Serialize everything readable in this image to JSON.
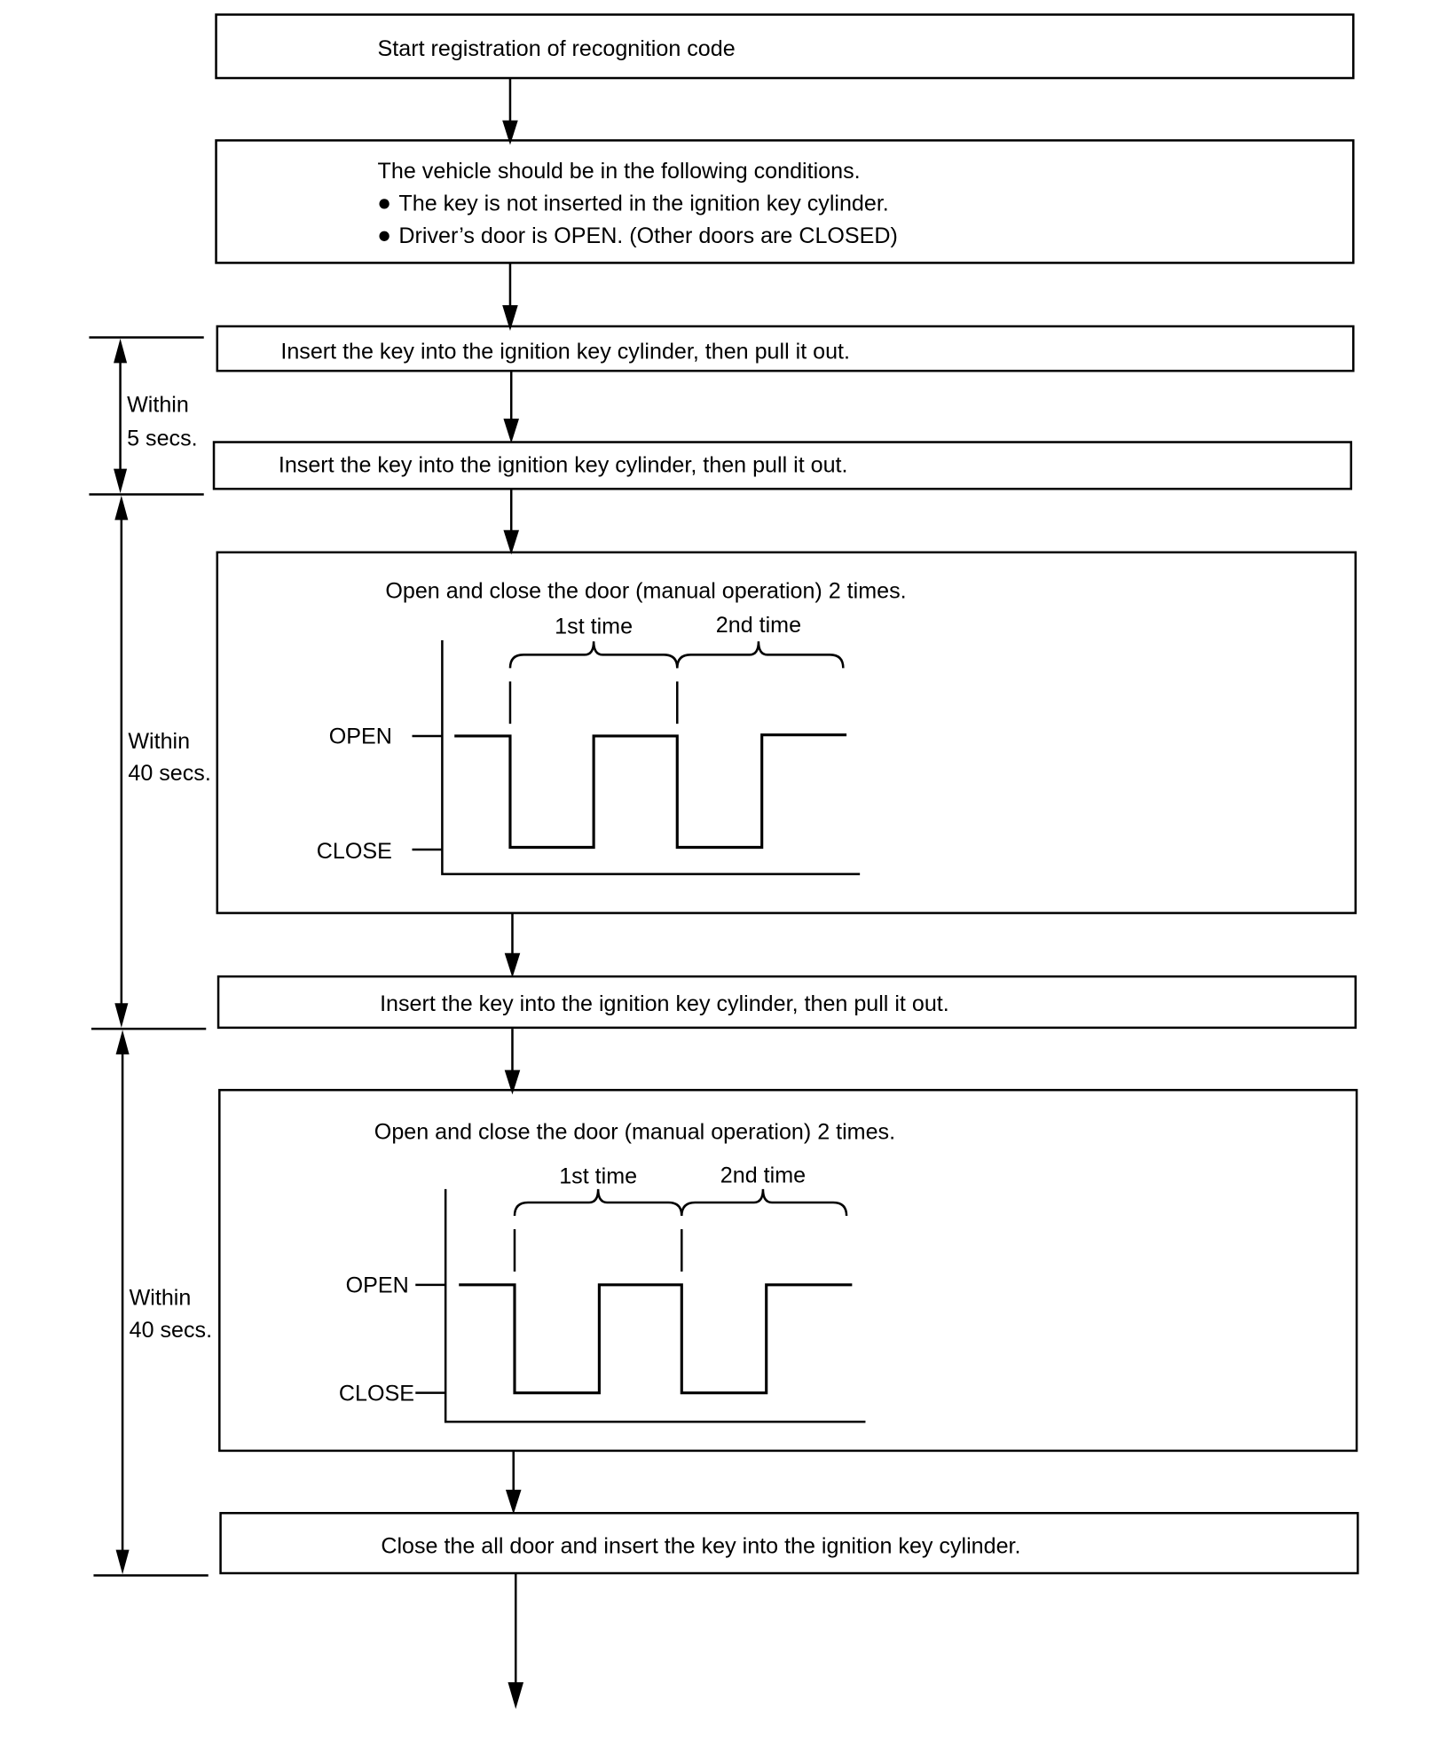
{
  "steps": [
    {
      "text": "Start registration of recognition code"
    },
    {
      "lines": [
        "The vehicle should be in the following conditions.",
        "The key is not inserted in the ignition key cylinder.",
        "Driver’s door is OPEN. (Other doors are CLOSED)"
      ]
    },
    {
      "text": "Insert the key into the ignition key cylinder, then pull it out."
    },
    {
      "text": "Insert the key into the ignition key cylinder, then pull it out."
    },
    {
      "title": "Open and close the door (manual operation) 2 times.",
      "first": "1st time",
      "second": "2nd time",
      "open": "OPEN",
      "close": "CLOSE"
    },
    {
      "text": "Insert the key into the ignition key cylinder, then pull it out."
    },
    {
      "title": "Open and close the door (manual operation) 2 times.",
      "first": "1st time",
      "second": "2nd time",
      "open": "OPEN",
      "close": "CLOSE"
    },
    {
      "text": "Close the all door and insert the key into the ignition key cylinder."
    }
  ],
  "timing": [
    {
      "line1": "Within",
      "line2": "5 secs."
    },
    {
      "line1": "Within",
      "line2": "40 secs."
    },
    {
      "line1": "Within",
      "line2": "40 secs."
    }
  ]
}
